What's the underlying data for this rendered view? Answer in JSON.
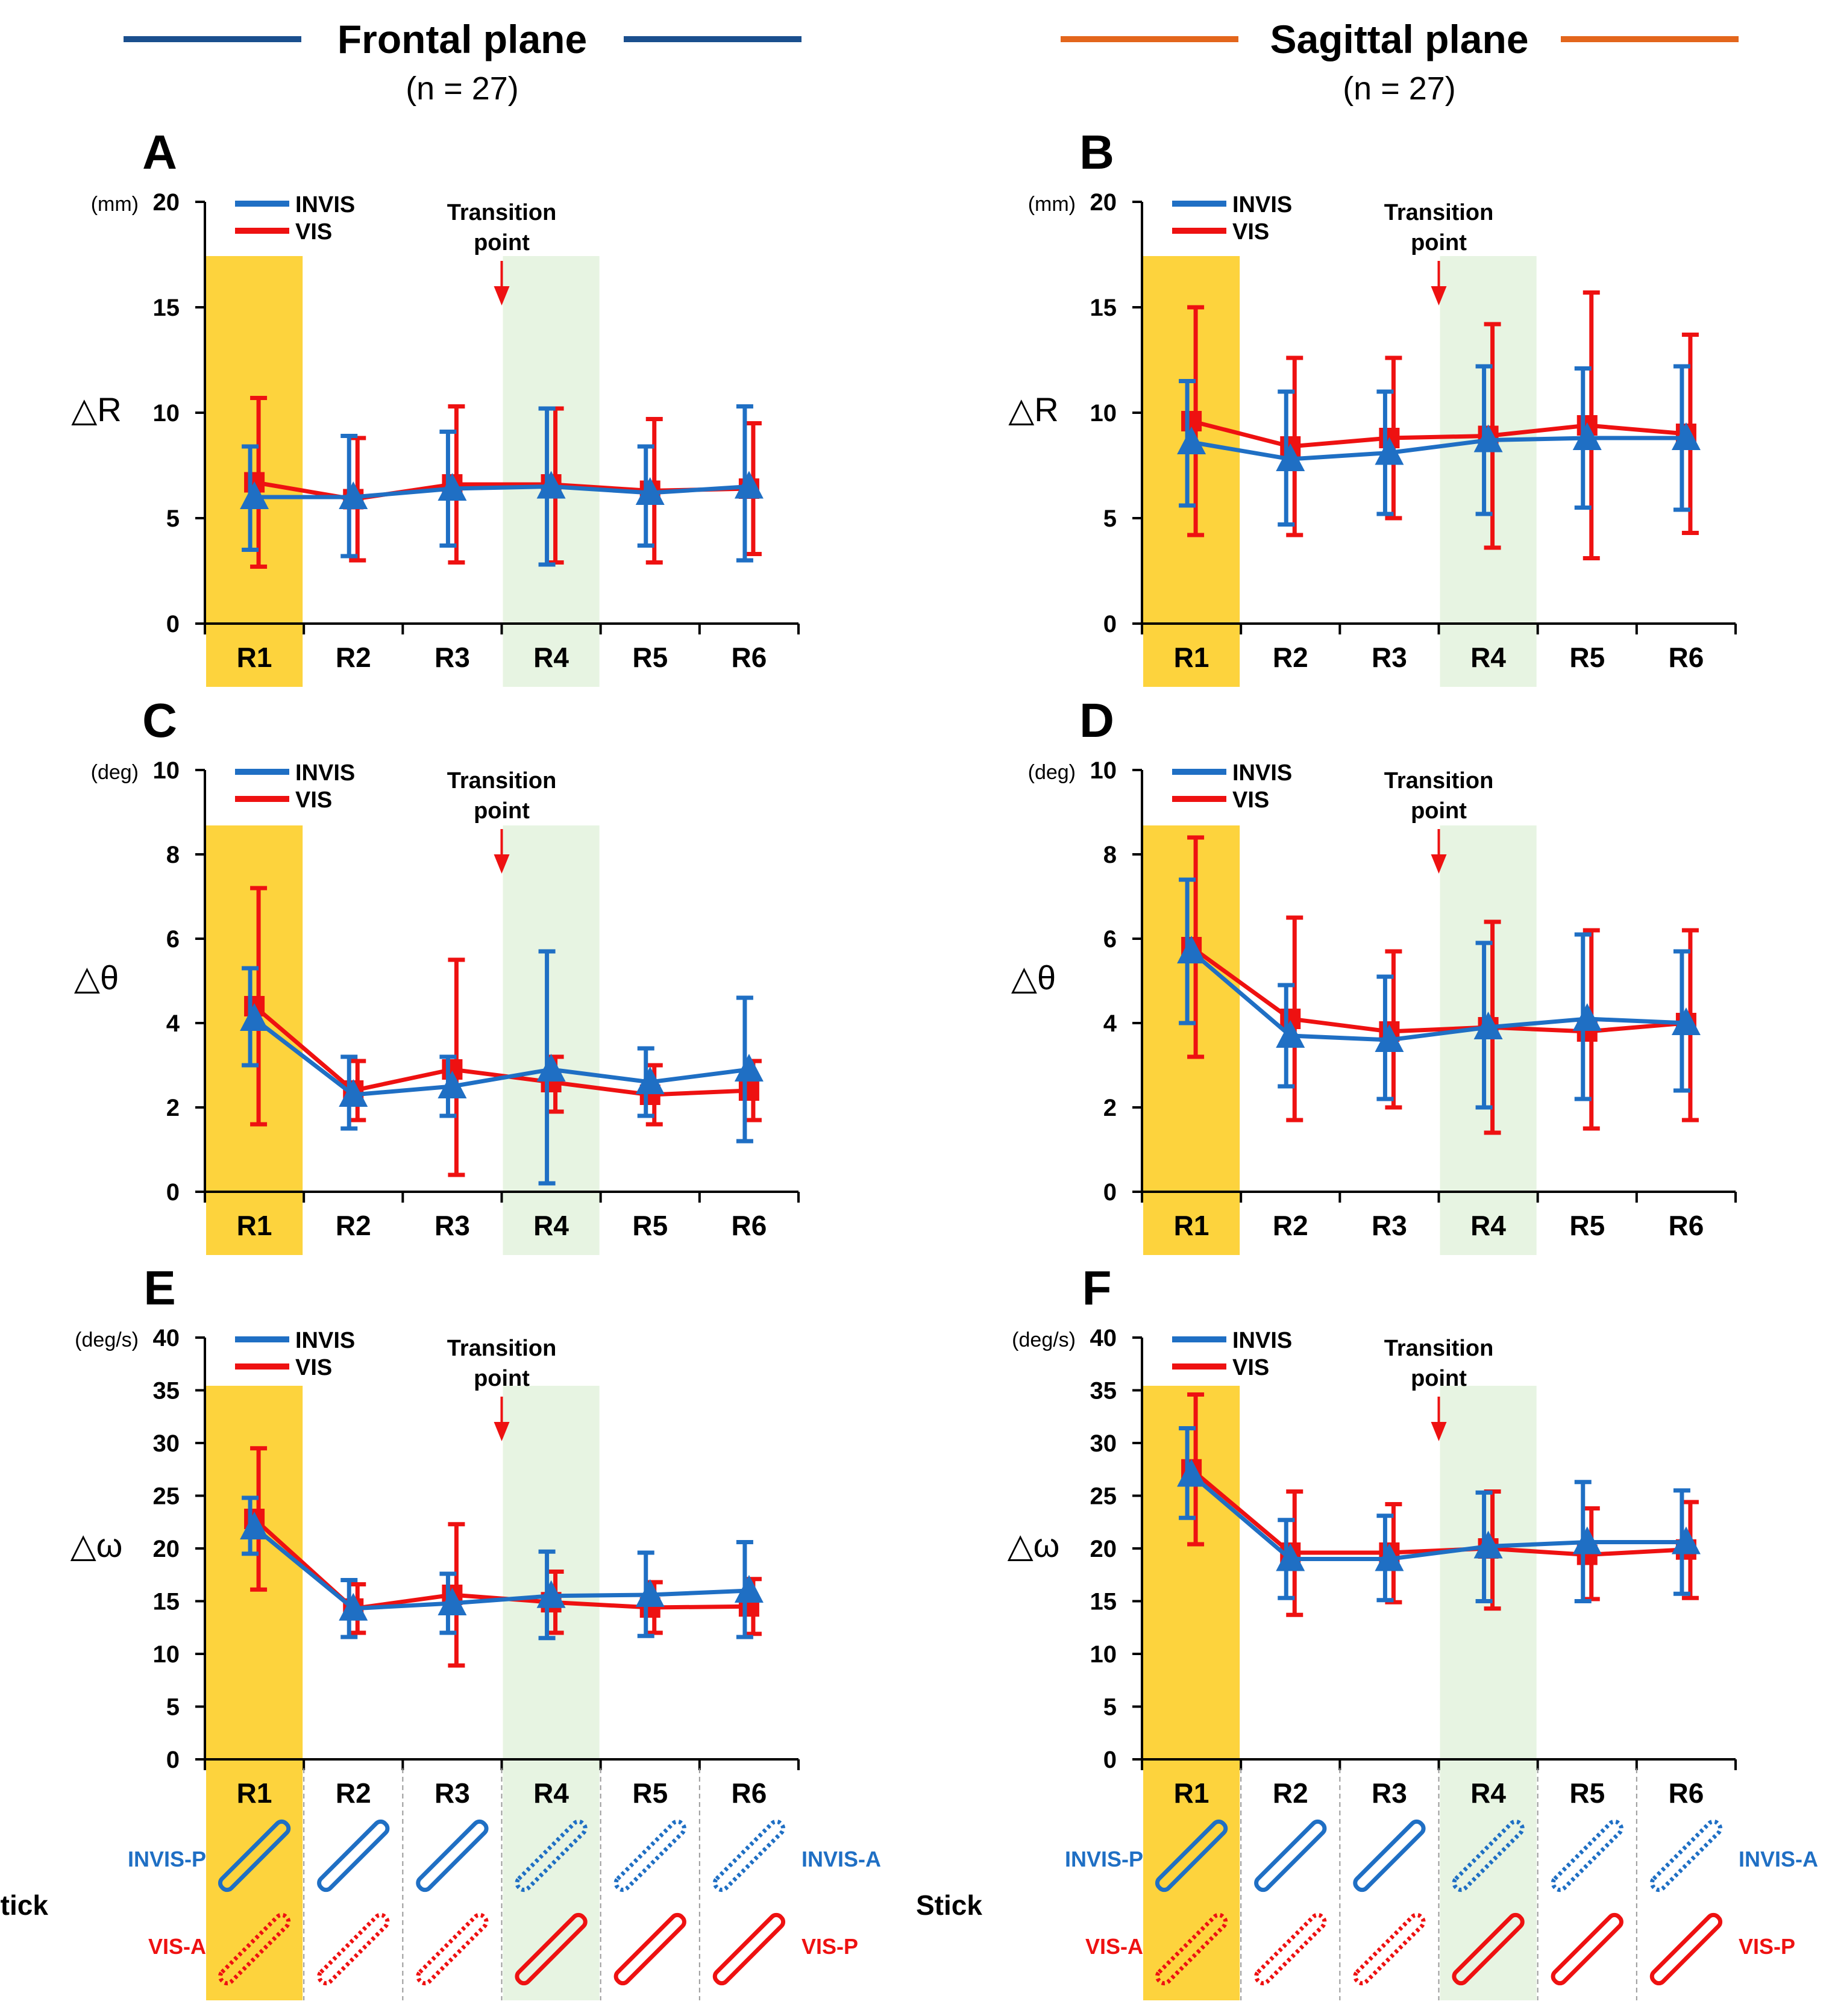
{
  "headers": {
    "frontal": {
      "title": "Frontal plane",
      "n_label": "(n = 27)"
    },
    "sagittal": {
      "title": "Sagittal plane",
      "n_label": "(n = 27)"
    }
  },
  "colors": {
    "invis": "#1f6fc4",
    "vis": "#ee1111",
    "frontal_rule": "#1a4f8e",
    "sagittal_rule": "#e3661c",
    "highlight_r1": "#fdd33d",
    "highlight_r4": "#e7f4e2"
  },
  "legend": {
    "invis": "INVIS",
    "vis": "VIS"
  },
  "transition": {
    "line1": "Transition",
    "line2": "point"
  },
  "stick": {
    "label": "Stick",
    "invis_p": "INVIS-P",
    "invis_a": "INVIS-A",
    "vis_a": "VIS-A",
    "vis_p": "VIS-P",
    "invis_styles": [
      "solid",
      "solid",
      "solid",
      "dotted",
      "dotted",
      "dotted"
    ],
    "vis_styles": [
      "dotted",
      "dotted",
      "dotted",
      "solid",
      "solid",
      "solid"
    ]
  },
  "chart_data": [
    {
      "panel": "A",
      "type": "line",
      "plane": "Frontal plane",
      "ylabel": "△R",
      "unit": "(mm)",
      "ylim": [
        0,
        20
      ],
      "yticks": [
        0,
        5,
        10,
        15,
        20
      ],
      "categories": [
        "R1",
        "R2",
        "R3",
        "R4",
        "R5",
        "R6"
      ],
      "series": [
        {
          "name": "INVIS",
          "values": [
            6.0,
            6.0,
            6.4,
            6.5,
            6.2,
            6.5
          ],
          "low": [
            3.5,
            3.2,
            3.7,
            2.8,
            3.7,
            3.0
          ],
          "high": [
            8.4,
            8.9,
            9.1,
            10.2,
            8.4,
            10.3
          ]
        },
        {
          "name": "VIS",
          "values": [
            6.7,
            5.9,
            6.6,
            6.6,
            6.3,
            6.4
          ],
          "low": [
            2.7,
            3.0,
            2.9,
            2.9,
            2.9,
            3.3
          ],
          "high": [
            10.7,
            8.8,
            10.3,
            10.2,
            9.7,
            9.5
          ]
        }
      ]
    },
    {
      "panel": "B",
      "type": "line",
      "plane": "Sagittal plane",
      "ylabel": "△R",
      "unit": "(mm)",
      "ylim": [
        0,
        20
      ],
      "yticks": [
        0,
        5,
        10,
        15,
        20
      ],
      "categories": [
        "R1",
        "R2",
        "R3",
        "R4",
        "R5",
        "R6"
      ],
      "series": [
        {
          "name": "INVIS",
          "values": [
            8.6,
            7.8,
            8.1,
            8.7,
            8.8,
            8.8
          ],
          "low": [
            5.6,
            4.7,
            5.2,
            5.2,
            5.5,
            5.4
          ],
          "high": [
            11.5,
            11.0,
            11.0,
            12.2,
            12.1,
            12.2
          ]
        },
        {
          "name": "VIS",
          "values": [
            9.6,
            8.4,
            8.8,
            8.9,
            9.4,
            9.0
          ],
          "low": [
            4.2,
            4.2,
            5.0,
            3.6,
            3.1,
            4.3
          ],
          "high": [
            15.0,
            12.6,
            12.6,
            14.2,
            15.7,
            13.7
          ]
        }
      ]
    },
    {
      "panel": "C",
      "type": "line",
      "plane": "Frontal plane",
      "ylabel": "△θ",
      "unit": "(deg)",
      "ylim": [
        0,
        10
      ],
      "yticks": [
        0,
        2,
        4,
        6,
        8,
        10
      ],
      "categories": [
        "R1",
        "R2",
        "R3",
        "R4",
        "R5",
        "R6"
      ],
      "series": [
        {
          "name": "INVIS",
          "values": [
            4.1,
            2.3,
            2.5,
            2.9,
            2.6,
            2.9
          ],
          "low": [
            3.0,
            1.5,
            1.8,
            0.2,
            1.8,
            1.2
          ],
          "high": [
            5.3,
            3.2,
            3.2,
            5.7,
            3.4,
            4.6
          ]
        },
        {
          "name": "VIS",
          "values": [
            4.4,
            2.4,
            2.9,
            2.6,
            2.3,
            2.4
          ],
          "low": [
            1.6,
            1.7,
            0.4,
            1.9,
            1.6,
            1.7
          ],
          "high": [
            7.2,
            3.1,
            5.5,
            3.2,
            3.0,
            3.1
          ]
        }
      ]
    },
    {
      "panel": "D",
      "type": "line",
      "plane": "Sagittal plane",
      "ylabel": "△θ",
      "unit": "(deg)",
      "ylim": [
        0,
        10
      ],
      "yticks": [
        0,
        2,
        4,
        6,
        8,
        10
      ],
      "categories": [
        "R1",
        "R2",
        "R3",
        "R4",
        "R5",
        "R6"
      ],
      "series": [
        {
          "name": "INVIS",
          "values": [
            5.7,
            3.7,
            3.6,
            3.9,
            4.1,
            4.0
          ],
          "low": [
            4.0,
            2.5,
            2.2,
            2.0,
            2.2,
            2.4
          ],
          "high": [
            7.4,
            4.9,
            5.1,
            5.9,
            6.1,
            5.7
          ]
        },
        {
          "name": "VIS",
          "values": [
            5.8,
            4.1,
            3.8,
            3.9,
            3.8,
            4.0
          ],
          "low": [
            3.2,
            1.7,
            2.0,
            1.4,
            1.5,
            1.7
          ],
          "high": [
            8.4,
            6.5,
            5.7,
            6.4,
            6.2,
            6.2
          ]
        }
      ]
    },
    {
      "panel": "E",
      "type": "line",
      "plane": "Frontal plane",
      "ylabel": "△ω",
      "unit": "(deg/s)",
      "ylim": [
        0,
        40
      ],
      "yticks": [
        0,
        5,
        10,
        15,
        20,
        25,
        30,
        35,
        40
      ],
      "categories": [
        "R1",
        "R2",
        "R3",
        "R4",
        "R5",
        "R6"
      ],
      "series": [
        {
          "name": "INVIS",
          "values": [
            22.0,
            14.3,
            14.8,
            15.5,
            15.6,
            16.0
          ],
          "low": [
            19.5,
            11.6,
            12.0,
            11.5,
            11.7,
            11.6
          ],
          "high": [
            24.8,
            17.0,
            17.6,
            19.7,
            19.6,
            20.6
          ]
        },
        {
          "name": "VIS",
          "values": [
            22.8,
            14.3,
            15.6,
            14.9,
            14.4,
            14.5
          ],
          "low": [
            16.1,
            12.0,
            8.9,
            12.0,
            12.0,
            11.9
          ],
          "high": [
            29.5,
            16.6,
            22.3,
            17.8,
            16.8,
            17.1
          ]
        }
      ]
    },
    {
      "panel": "F",
      "type": "line",
      "plane": "Sagittal plane",
      "ylabel": "△ω",
      "unit": "(deg/s)",
      "ylim": [
        0,
        40
      ],
      "yticks": [
        0,
        5,
        10,
        15,
        20,
        25,
        30,
        35,
        40
      ],
      "categories": [
        "R1",
        "R2",
        "R3",
        "R4",
        "R5",
        "R6"
      ],
      "series": [
        {
          "name": "INVIS",
          "values": [
            27.0,
            19.0,
            19.0,
            20.2,
            20.6,
            20.6
          ],
          "low": [
            22.9,
            15.3,
            15.1,
            15.0,
            15.0,
            15.7
          ],
          "high": [
            31.4,
            22.7,
            23.1,
            25.3,
            26.3,
            25.5
          ]
        },
        {
          "name": "VIS",
          "values": [
            27.5,
            19.6,
            19.6,
            20.0,
            19.4,
            19.9
          ],
          "low": [
            20.4,
            13.7,
            14.9,
            14.3,
            15.2,
            15.3
          ],
          "high": [
            34.6,
            25.4,
            24.2,
            25.4,
            23.8,
            24.4
          ]
        }
      ]
    }
  ]
}
